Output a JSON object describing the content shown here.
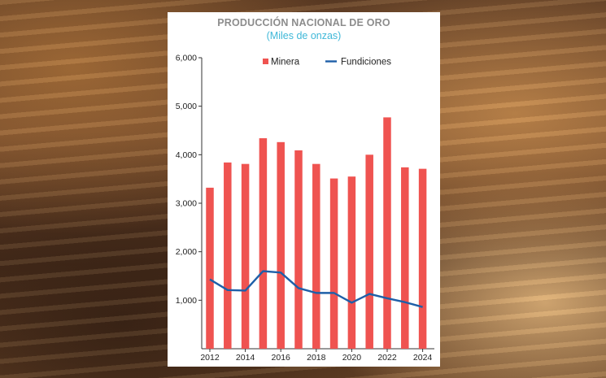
{
  "chart_data": {
    "type": "bar",
    "title": "PRODUCCIÓN NACIONAL DE ORO",
    "subtitle": "(Miles de onzas)",
    "x": [
      2012,
      2013,
      2014,
      2015,
      2016,
      2017,
      2018,
      2019,
      2020,
      2021,
      2022,
      2023,
      2024
    ],
    "x_tick_labels": [
      "2012",
      "2014",
      "2016",
      "2018",
      "2020",
      "2022",
      "2024"
    ],
    "y_tick_labels": [
      "1,000",
      "2,000",
      "3,000",
      "4,000",
      "5,000",
      "6,000"
    ],
    "ylim": [
      0,
      6000
    ],
    "legend_position": "top",
    "series": [
      {
        "name": "Minera",
        "type": "bar",
        "color": "#ef5350",
        "values": [
          3320,
          3840,
          3810,
          4340,
          4260,
          4090,
          3810,
          3510,
          3550,
          4000,
          4770,
          3740,
          3710
        ]
      },
      {
        "name": "Fundiciones",
        "type": "line",
        "color": "#1e5fa8",
        "values": [
          1430,
          1210,
          1200,
          1600,
          1570,
          1250,
          1150,
          1150,
          950,
          1130,
          1040,
          960,
          860
        ]
      }
    ]
  },
  "colors": {
    "bar": "#ef5350",
    "line": "#1e5fa8",
    "subtitle": "#3fb8d8",
    "title": "#8c8c8c"
  }
}
